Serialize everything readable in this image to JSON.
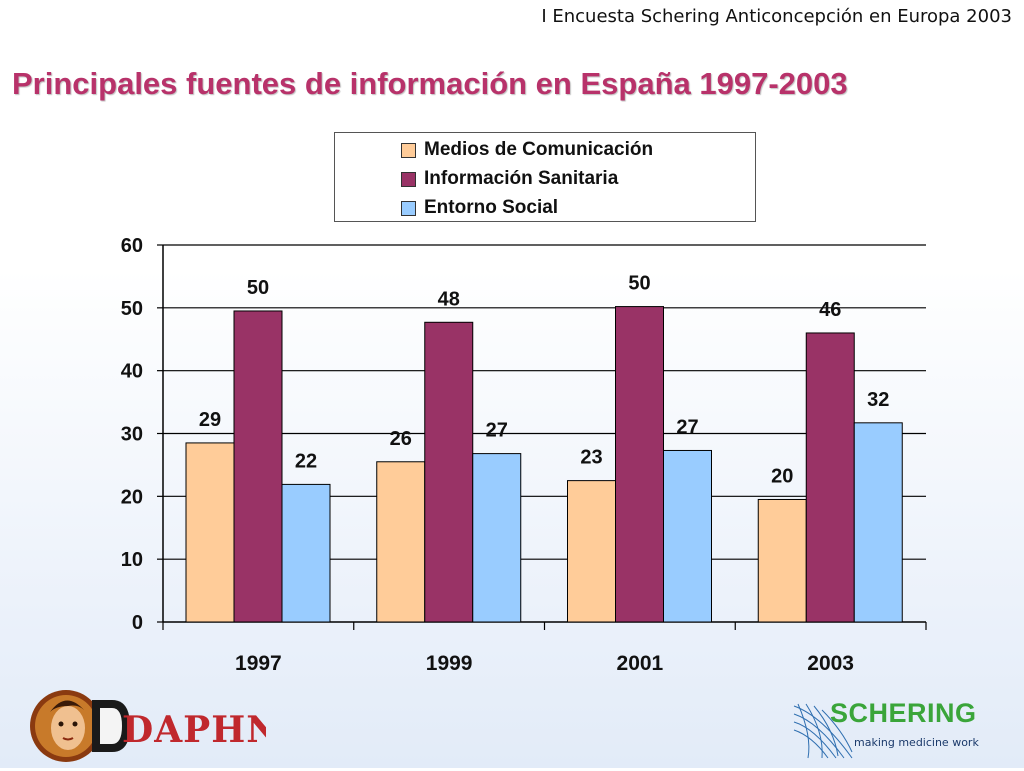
{
  "header": {
    "caption": "I Encuesta Schering Anticoncepción en Europa 2003",
    "title": "Principales fuentes de información en España 1997-2003"
  },
  "chart_data": {
    "type": "bar",
    "categories": [
      "1997",
      "1999",
      "2001",
      "2003"
    ],
    "series": [
      {
        "name": "Medios de Comunicación",
        "values": [
          28.5,
          25.5,
          22.5,
          19.5
        ],
        "labels": [
          "29",
          "26",
          "23",
          "20"
        ],
        "color": "#ffcc99"
      },
      {
        "name": "Información Sanitaria",
        "values": [
          49.5,
          47.7,
          50.2,
          46.0
        ],
        "labels": [
          "50",
          "48",
          "50",
          "46"
        ],
        "color": "#993366"
      },
      {
        "name": "Entorno Social",
        "values": [
          21.9,
          26.8,
          27.3,
          31.7
        ],
        "labels": [
          "22",
          "27",
          "27",
          "32"
        ],
        "color": "#99ccff"
      }
    ],
    "ylim": [
      0,
      60
    ],
    "yticks": [
      "0",
      "10",
      "20",
      "30",
      "40",
      "50",
      "60"
    ],
    "grid": true,
    "legend_position": "top"
  },
  "logos": {
    "daphne": "DAPHNE",
    "schering_name": "SCHERING",
    "schering_slogan": "making medicine work"
  }
}
